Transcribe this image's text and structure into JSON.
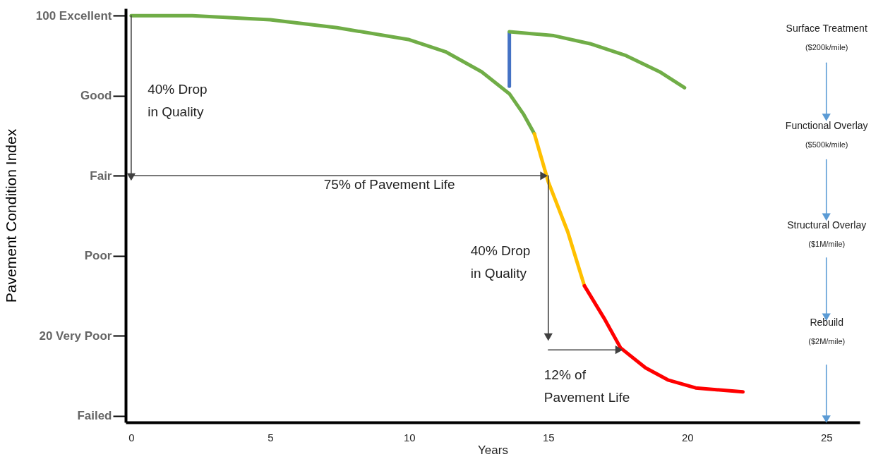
{
  "chart_data": {
    "type": "line",
    "xlabel": "Years",
    "ylabel": "Pavement Condition Index",
    "xlim": [
      -0.2,
      26.2
    ],
    "ylim": [
      -1.6,
      101.8
    ],
    "xticks": [
      0,
      5,
      10,
      15,
      20,
      25
    ],
    "yticks": [
      {
        "value": 0,
        "label": "Failed"
      },
      {
        "value": 20,
        "label": "20   Very Poor"
      },
      {
        "value": 40,
        "label": "Poor"
      },
      {
        "value": 60,
        "label": "Fair"
      },
      {
        "value": 80,
        "label": "Good"
      },
      {
        "value": 100,
        "label": "100   Excellent"
      }
    ],
    "grid": false,
    "marker": "none",
    "line_style": "solid",
    "series": [
      {
        "color": "#70ad47",
        "x": [
          0,
          2.2,
          5,
          7.4,
          10,
          11.3,
          12.6,
          13.6,
          14.1,
          14.5
        ],
        "values": [
          100,
          100,
          99,
          97,
          94,
          91,
          86,
          80.5,
          75.5,
          70.5
        ]
      },
      {
        "color": "#ffc000",
        "x": [
          14.5,
          15,
          15.7,
          16.3
        ],
        "values": [
          70.5,
          58.5,
          46,
          32.5
        ]
      },
      {
        "color": "#ff0000",
        "x": [
          16.3,
          17,
          17.6,
          18.5,
          19.3,
          20.3,
          22
        ],
        "values": [
          32.5,
          24.5,
          17,
          12,
          9,
          7,
          6
        ]
      },
      {
        "color": "#4472c4",
        "x": [
          13.6,
          13.6
        ],
        "values": [
          82.4,
          95.8
        ]
      },
      {
        "color": "#70ad47",
        "x": [
          13.6,
          15.2,
          16.5,
          17.8,
          19,
          19.9
        ],
        "values": [
          96,
          95,
          93,
          90,
          86,
          82
        ]
      },
      {
        "color": "#404040",
        "marker": "triangle",
        "x": [
          0,
          0
        ],
        "values": [
          100,
          60
        ]
      },
      {
        "color": "#404040",
        "marker": "triangle",
        "x": [
          0,
          14.8
        ],
        "values": [
          60,
          60
        ]
      },
      {
        "color": "#404040",
        "marker": "triangle",
        "x": [
          15,
          15
        ],
        "values": [
          60,
          20
        ]
      },
      {
        "color": "#404040",
        "marker": "triangle",
        "x": [
          15,
          17.5
        ],
        "values": [
          16.5,
          16.5
        ]
      },
      {
        "color": "#5b9bd5",
        "marker": "triangle",
        "x": [
          25,
          25
        ],
        "values": [
          88.2,
          74.9
        ]
      },
      {
        "color": "#5b9bd5",
        "marker": "triangle",
        "x": [
          25,
          25
        ],
        "values": [
          64,
          50
        ]
      },
      {
        "color": "#5b9bd5",
        "marker": "triangle",
        "x": [
          25,
          25
        ],
        "values": [
          39.5,
          25
        ]
      },
      {
        "color": "#5b9bd5",
        "marker": "triangle",
        "x": [
          25,
          25
        ],
        "values": [
          12.7,
          -0.5
        ]
      }
    ],
    "annotations": [
      "40% Drop\nin Quality",
      "75% of Pavement Life",
      "40% Drop\nin Quality",
      "12% of\nPavement Life",
      "Surface Treatment",
      "($200k/mile)",
      "Functional Overlay",
      "($500k/mile)",
      "Structural Overlay",
      "($1M/mile)",
      "Rebuild",
      "($2M/mile)"
    ]
  }
}
